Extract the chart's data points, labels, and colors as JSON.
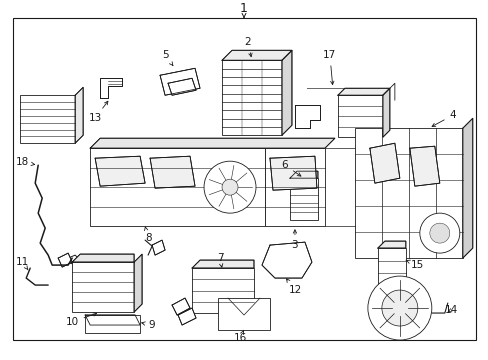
{
  "bg": "#ffffff",
  "lc": "#1a1a1a",
  "fig_w": 4.89,
  "fig_h": 3.6,
  "dpi": 100,
  "border_lw": 0.8,
  "part_lw": 0.6,
  "label_fs": 7.5,
  "title_fs": 9
}
